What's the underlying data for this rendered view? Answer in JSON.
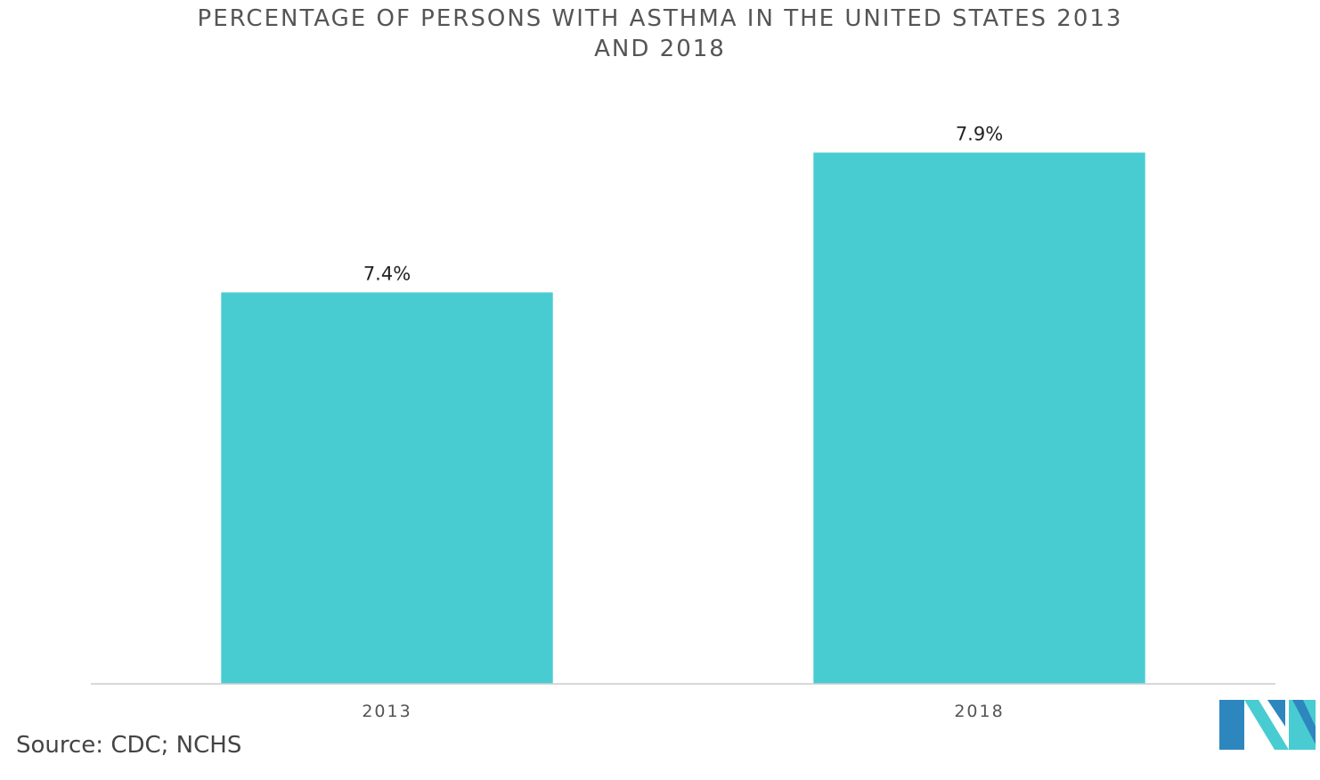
{
  "chart_data": {
    "type": "bar",
    "title_line1": "PERCENTAGE OF PERSONS WITH ASTHMA IN THE UNITED STATES 2013",
    "title_line2": "AND 2018",
    "categories": [
      "2013",
      "2018"
    ],
    "values": [
      7.4,
      7.9
    ],
    "value_labels": [
      "7.4%",
      "7.9%"
    ],
    "xlabel": "",
    "ylabel": "",
    "ylim": [
      6.0,
      8.0
    ],
    "grid": false,
    "legend": "none",
    "bar_color": "#48CCD2"
  },
  "source": "Source: CDC; NCHS",
  "logo": {
    "icon": "mordor-intelligence-logo",
    "color_dark": "#2E86BF",
    "color_light": "#48CCD2"
  }
}
